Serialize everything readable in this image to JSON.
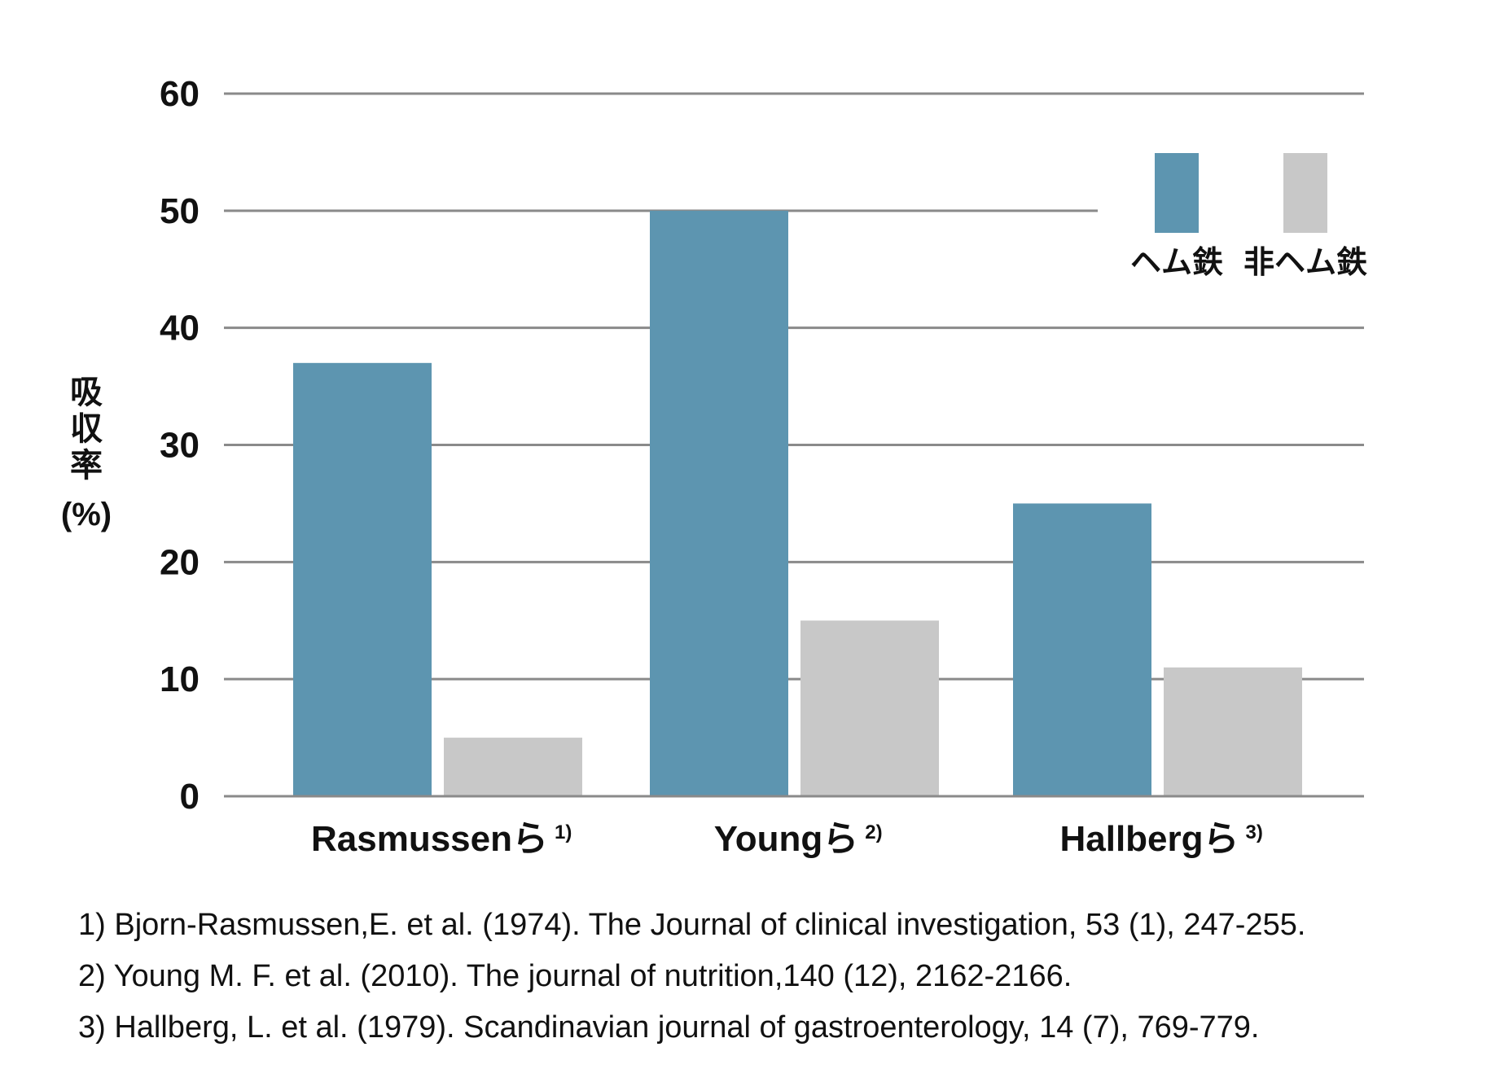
{
  "chart_data": {
    "type": "bar",
    "title": "",
    "xlabel": "",
    "ylabel": "吸収率(%)",
    "ylabel_lines": [
      "吸",
      "収",
      "率",
      "(%)"
    ],
    "ylim": [
      0,
      60
    ],
    "yticks": [
      0,
      10,
      20,
      30,
      40,
      50,
      60
    ],
    "grid": true,
    "legend_position": "top-right",
    "categories": [
      "Rasmussenら",
      "Youngら",
      "Hallbergら"
    ],
    "category_refs": [
      "1)",
      "2)",
      "3)"
    ],
    "series": [
      {
        "name": "ヘム鉄",
        "color": "#5d95b0",
        "values": [
          37,
          50,
          25
        ]
      },
      {
        "name": "非ヘム鉄",
        "color": "#c8c8c8",
        "values": [
          5,
          15,
          11
        ]
      }
    ]
  },
  "references": [
    "1)  Bjorn-Rasmussen,E. et al.  (1974).  The Journal of clinical  investigation, 53 (1),  247-255.",
    "2)  Young  M. F. et al.  (2010).  The  journal of nutrition,140 (12),  2162-2166.",
    "3)  Hallberg, L. et al.  (1979).  Scandinavian journal of  gastroenterology, 14 (7),  769-779."
  ]
}
